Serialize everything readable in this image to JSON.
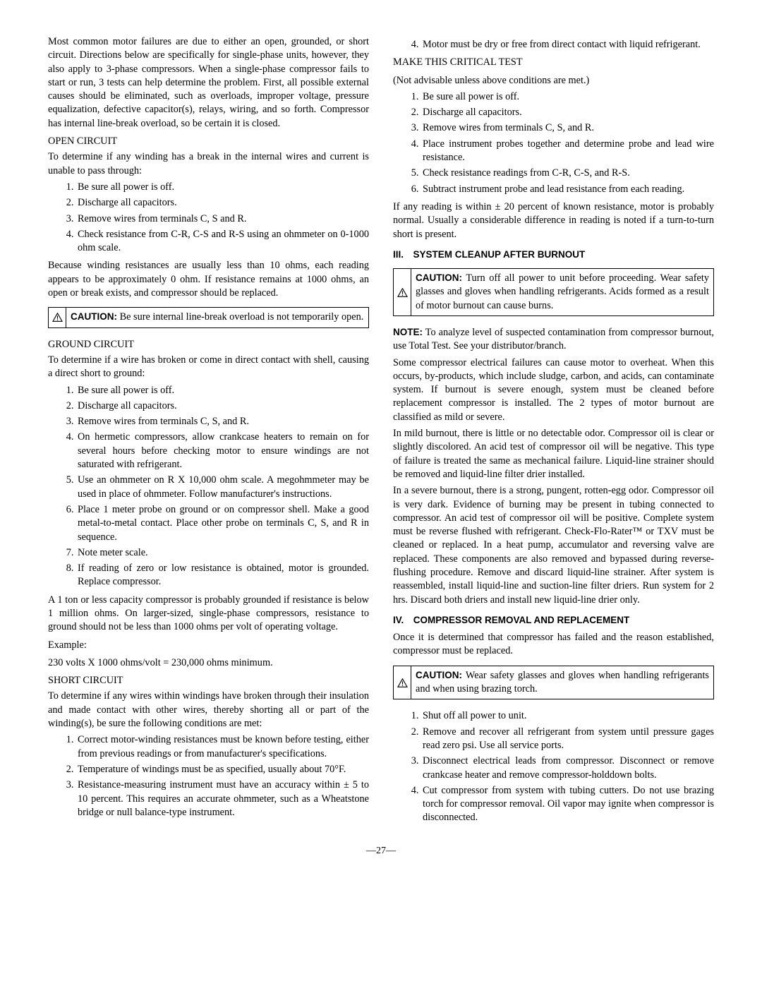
{
  "left": {
    "intro": "Most common motor failures are due to either an open, grounded, or short circuit. Directions below are specifically for single-phase units, however, they also apply to 3-phase compressors. When a single-phase compressor fails to start or run, 3 tests can help determine the problem. First, all possible external causes should be eliminated, such as overloads, improper voltage, pressure equalization, defective capacitor(s), relays, wiring, and so forth. Compressor has internal line-break overload, so be certain it is closed.",
    "open_head": "OPEN CIRCUIT",
    "open_intro": "To determine if any winding has a break in the internal wires and current is unable to pass through:",
    "open_list": [
      "Be sure all power is off.",
      "Discharge all capacitors.",
      "Remove wires from terminals C, S and R.",
      "Check resistance from C-R, C-S and R-S using an ohmmeter on 0-1000 ohm scale."
    ],
    "open_after": "Because winding resistances are usually less than 10 ohms, each reading appears to be approximately 0 ohm. If resistance remains at 1000 ohms, an open or break exists, and compressor should be replaced.",
    "caution1_label": "CAUTION:",
    "caution1_text": " Be sure internal line-break overload is not temporarily open.",
    "ground_head": "GROUND CIRCUIT",
    "ground_intro": "To determine if a wire has broken or come in direct contact with shell, causing a direct short to ground:",
    "ground_list": [
      "Be sure all power is off.",
      "Discharge all capacitors.",
      "Remove wires from terminals C, S, and R.",
      "On hermetic compressors, allow crankcase heaters to remain on for several hours before checking motor to ensure windings are not saturated with refrigerant.",
      "Use an ohmmeter on R X 10,000 ohm scale. A megohmmeter may be used in place of ohmmeter. Follow manufacturer's instructions.",
      "Place 1 meter probe on ground or on compressor shell. Make a good metal-to-metal contact. Place other probe on terminals C, S, and R in sequence.",
      "Note meter scale.",
      "If reading of zero or low resistance is obtained, motor is grounded. Replace compressor."
    ],
    "ground_after": "A 1 ton or less capacity compressor is probably grounded if resistance is below 1 million ohms. On larger-sized, single-phase compressors, resistance to ground should not be less than 1000 ohms per volt of operating voltage.",
    "example_label": "Example:",
    "example_line": "230 volts X 1000 ohms/volt = 230,000 ohms minimum.",
    "short_head": "SHORT CIRCUIT",
    "short_intro": "To determine if any wires within windings have broken through their insulation and made contact with other wires, thereby shorting all or part of the winding(s), be sure the following conditions are met:",
    "short_list": [
      "Correct motor-winding resistances must be known before testing, either from previous readings or from manufacturer's specifications.",
      "Temperature of windings must be as specified, usually about 70°F.",
      "Resistance-measuring instrument must have an accuracy within ± 5 to 10 percent. This requires an accurate ohmmeter, such as a Wheatstone bridge or null balance-type instrument."
    ]
  },
  "right": {
    "top_list_start": 4,
    "top_list": [
      "Motor must be dry or free from direct contact with liquid refrigerant."
    ],
    "make_head": "MAKE THIS CRITICAL TEST",
    "make_sub": "(Not advisable unless above conditions are met.)",
    "make_list": [
      "Be sure all power is off.",
      "Discharge all capacitors.",
      "Remove wires from terminals C, S, and R.",
      "Place instrument probes together and determine probe and lead wire resistance.",
      "Check resistance readings from C-R, C-S, and R-S.",
      "Subtract instrument probe and lead resistance from each reading."
    ],
    "make_after": "If any reading is within ± 20 percent of known resistance, motor is probably normal. Usually a considerable difference in reading is noted if a turn-to-turn short is present.",
    "sec3_head": "III. SYSTEM CLEANUP AFTER BURNOUT",
    "caution2_label": "CAUTION:",
    "caution2_text": " Turn off all power to unit before proceeding. Wear safety glasses and gloves when handling refrigerants. Acids formed as a result of motor burnout can cause burns.",
    "note_label": "NOTE:",
    "note_text": " To analyze level of suspected contamination from compressor burnout, use Total Test. See your distributor/branch.",
    "p1": "Some compressor electrical failures can cause motor to overheat. When this occurs, by-products, which include sludge, carbon, and acids, can contaminate system. If burnout is severe enough, system must be cleaned before replacement compressor is installed. The 2 types of motor burnout are classified as mild or severe.",
    "p2": "In mild burnout, there is little or no detectable odor. Compressor oil is clear or slightly discolored. An acid test of compressor oil will be negative. This type of failure is treated the same as mechanical failure. Liquid-line strainer should be removed and liquid-line filter drier installed.",
    "p3": "In a severe burnout, there is a strong, pungent, rotten-egg odor. Compressor oil is very dark. Evidence of burning may be present in tubing connected to compressor. An acid test of compressor oil will be positive. Complete system must be reverse flushed with refrigerant. Check-Flo-Rater™ or TXV must be cleaned or replaced. In a heat pump, accumulator and reversing valve are replaced. These components are also removed and bypassed during reverse-flushing procedure. Remove and discard liquid-line strainer. After system is reassembled, install liquid-line and suction-line filter driers. Run system for 2 hrs. Discard both driers and install new liquid-line drier only.",
    "sec4_head": "IV. COMPRESSOR REMOVAL AND REPLACEMENT",
    "sec4_intro": "Once it is determined that compressor has failed and the reason established, compressor must be replaced.",
    "caution3_label": "CAUTION:",
    "caution3_text": " Wear safety glasses and gloves when handling refrigerants and when using brazing torch.",
    "sec4_list": [
      "Shut off all power to unit.",
      "Remove and recover all refrigerant from system until pressure gages read zero psi. Use all service ports.",
      "Disconnect electrical leads from compressor. Disconnect or remove crankcase heater and remove compressor-holddown bolts.",
      "Cut compressor from system with tubing cutters. Do not use brazing torch for compressor removal. Oil vapor may ignite when compressor is disconnected."
    ]
  },
  "page_number": "—27—"
}
